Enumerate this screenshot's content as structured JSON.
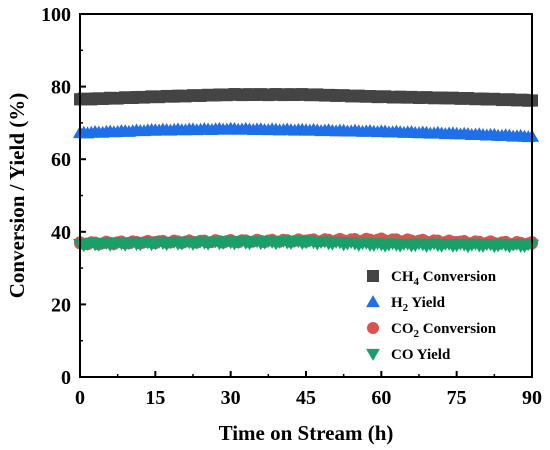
{
  "chart_data": {
    "type": "scatter",
    "xlabel": "Time on Stream (h)",
    "ylabel": "Conversion / Yield (%)",
    "xlim": [
      0,
      90
    ],
    "ylim": [
      0,
      100
    ],
    "xticks": [
      0,
      15,
      30,
      45,
      60,
      75,
      90
    ],
    "yticks": [
      0,
      20,
      40,
      60,
      80,
      100
    ],
    "grid": false,
    "legend_position": "bottom-right",
    "series": [
      {
        "name": "CH4 Conversion",
        "label_main": "CH",
        "label_sub": "4",
        "label_rest": " Conversion",
        "marker": "square",
        "color": "#444444",
        "x": [
          0,
          15,
          30,
          45,
          60,
          75,
          90
        ],
        "y": [
          76.5,
          77.2,
          77.8,
          77.8,
          77.2,
          76.8,
          76.2
        ]
      },
      {
        "name": "H2 Yield",
        "label_main": "H",
        "label_sub": "2",
        "label_rest": " Yield",
        "marker": "triangle-up",
        "color": "#1f6fe8",
        "x": [
          0,
          15,
          30,
          45,
          60,
          75,
          90
        ],
        "y": [
          67.2,
          68.0,
          68.3,
          68.0,
          67.6,
          67.0,
          66.2
        ]
      },
      {
        "name": "CO2 Conversion",
        "label_main": "CO",
        "label_sub": "2",
        "label_rest": " Conversion",
        "marker": "circle",
        "color": "#d9534f",
        "x": [
          0,
          15,
          30,
          45,
          60,
          75,
          90
        ],
        "y": [
          36.8,
          37.2,
          37.4,
          37.6,
          37.8,
          37.2,
          36.8
        ]
      },
      {
        "name": "CO Yield",
        "label_main": "CO",
        "label_sub": "",
        "label_rest": " Yield",
        "marker": "triangle-down",
        "color": "#1a9e6a",
        "x": [
          0,
          15,
          30,
          45,
          60,
          75,
          90
        ],
        "y": [
          36.6,
          36.9,
          37.1,
          37.2,
          36.5,
          36.4,
          36.3
        ]
      }
    ]
  }
}
